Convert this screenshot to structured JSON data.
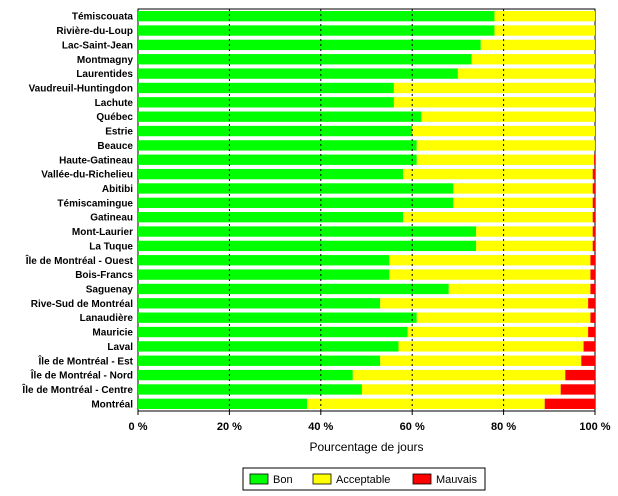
{
  "chart_data": {
    "type": "bar",
    "orientation": "horizontal",
    "stacked": true,
    "title": "",
    "xlabel": "Pourcentage de jours",
    "ylabel": "",
    "xlim": [
      0,
      100
    ],
    "x_ticks": [
      "0 %",
      "20 %",
      "40 %",
      "60 %",
      "80 %",
      "100 %"
    ],
    "grid": "vertical dotted at 20 % steps",
    "legend_position": "bottom",
    "categories": [
      "Témiscouata",
      "Rivière-du-Loup",
      "Lac-Saint-Jean",
      "Montmagny",
      "Laurentides",
      "Vaudreuil-Huntingdon",
      "Lachute",
      "Québec",
      "Estrie",
      "Beauce",
      "Haute-Gatineau",
      "Vallée-du-Richelieu",
      "Abitibi",
      "Témiscamingue",
      "Gatineau",
      "Mont-Laurier",
      "La Tuque",
      "Île de Montréal - Ouest",
      "Bois-Francs",
      "Saguenay",
      "Rive-Sud de Montréal",
      "Lanaudière",
      "Mauricie",
      "Laval",
      "Île de Montréal - Est",
      "Île de Montréal - Nord",
      "Île de Montréal - Centre",
      "Montréal"
    ],
    "series": [
      {
        "name": "Bon",
        "color": "#00ff00",
        "values": [
          78,
          78,
          75,
          73,
          70,
          56,
          56,
          62,
          60,
          61,
          61,
          58,
          69,
          69,
          58,
          74,
          74,
          55,
          55,
          68,
          53,
          61,
          59,
          57,
          53,
          47,
          49,
          37
        ]
      },
      {
        "name": "Acceptable",
        "color": "#ffff00",
        "values": [
          22,
          22,
          25,
          27,
          30,
          44,
          44,
          38,
          40,
          39,
          38.8,
          41.5,
          30.5,
          30.5,
          41.5,
          25.5,
          25.5,
          44,
          44,
          31,
          45.5,
          38,
          39.5,
          40.5,
          44,
          46.5,
          43.5,
          52
        ]
      },
      {
        "name": "Mauvais",
        "color": "#ff0000",
        "values": [
          0,
          0,
          0,
          0,
          0,
          0,
          0,
          0,
          0,
          0,
          0.2,
          0.5,
          0.5,
          0.5,
          0.5,
          0.5,
          0.5,
          1,
          1,
          1,
          1.5,
          1,
          1.5,
          2.5,
          3,
          6.5,
          7.5,
          11
        ]
      }
    ]
  }
}
